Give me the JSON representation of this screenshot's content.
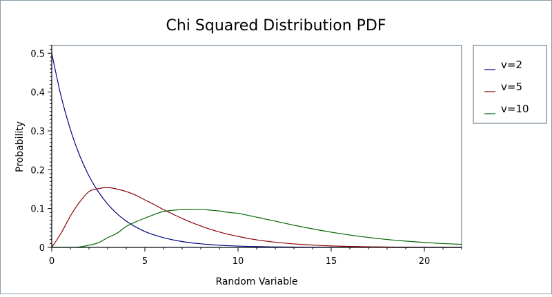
{
  "chart_data": {
    "type": "line",
    "title": "Chi Squared Distribution PDF",
    "xlabel": "Random Variable",
    "ylabel": "Probability",
    "xlim": [
      0,
      22
    ],
    "ylim": [
      0,
      0.52
    ],
    "x_ticks": [
      0,
      5,
      10,
      15,
      20
    ],
    "y_ticks": [
      0,
      0.1,
      0.2,
      0.3,
      0.4,
      0.5
    ],
    "x_tick_labels": [
      "0",
      "5",
      "10",
      "15",
      "20"
    ],
    "y_tick_labels": [
      "0",
      "0.1",
      "0.2",
      "0.3",
      "0.4",
      "0.5"
    ],
    "grid": false,
    "legend_position": "right-top",
    "x": [
      0,
      0.5,
      1,
      1.5,
      2,
      2.5,
      3,
      3.5,
      4,
      4.5,
      5,
      5.5,
      6,
      6.5,
      7,
      7.5,
      8,
      8.5,
      9,
      9.5,
      10,
      10.5,
      11,
      11.5,
      12,
      12.5,
      13,
      13.5,
      14,
      14.5,
      15,
      15.5,
      16,
      16.5,
      17,
      17.5,
      18,
      18.5,
      19,
      19.5,
      20,
      20.5,
      21,
      21.5,
      22
    ],
    "series": [
      {
        "name": "v=2",
        "color": "#000080",
        "values": [
          0.5,
          0.3894,
          0.3033,
          0.2362,
          0.1839,
          0.1433,
          0.1116,
          0.0869,
          0.0677,
          0.0527,
          0.041,
          0.032,
          0.0249,
          0.0194,
          0.0151,
          0.0118,
          0.0092,
          0.0071,
          0.0056,
          0.0043,
          0.0034,
          0.0026,
          0.002,
          0.0016,
          0.0012,
          0.001,
          0.0008,
          0.0006,
          0.0005,
          0.0004,
          0.0003,
          0.0002,
          0.0002,
          0.0001,
          0.0001,
          0.0001,
          0.0001,
          0.0,
          0.0,
          0.0,
          0.0,
          0.0,
          0.0,
          0.0,
          0.0
        ]
      },
      {
        "name": "v=5",
        "color": "#8b0000",
        "values": [
          0.0,
          0.0366,
          0.0807,
          0.1169,
          0.1438,
          0.1512,
          0.1542,
          0.1502,
          0.1439,
          0.1347,
          0.1222,
          0.1103,
          0.0973,
          0.0857,
          0.0744,
          0.0642,
          0.0551,
          0.0467,
          0.0396,
          0.0334,
          0.0283,
          0.0234,
          0.0194,
          0.0161,
          0.0134,
          0.011,
          0.009,
          0.0073,
          0.006,
          0.0048,
          0.0038,
          0.0031,
          0.0025,
          0.002,
          0.0016,
          0.0013,
          0.001,
          0.0008,
          0.0007,
          0.0005,
          0.0004,
          0.0003,
          0.0003,
          0.0002,
          0.0002
        ]
      },
      {
        "name": "v=10",
        "color": "#006400",
        "values": [
          0.0,
          0.0,
          0.0001,
          0.0012,
          0.0057,
          0.0118,
          0.0251,
          0.0363,
          0.0541,
          0.0656,
          0.0754,
          0.0846,
          0.0925,
          0.0955,
          0.0973,
          0.0979,
          0.0977,
          0.0959,
          0.0936,
          0.0901,
          0.0877,
          0.0829,
          0.0778,
          0.0727,
          0.0675,
          0.0622,
          0.0571,
          0.0524,
          0.0477,
          0.0433,
          0.0392,
          0.0354,
          0.0318,
          0.0285,
          0.0256,
          0.0229,
          0.0203,
          0.0181,
          0.0162,
          0.0144,
          0.0126,
          0.0112,
          0.0099,
          0.0088,
          0.0077
        ]
      }
    ]
  }
}
